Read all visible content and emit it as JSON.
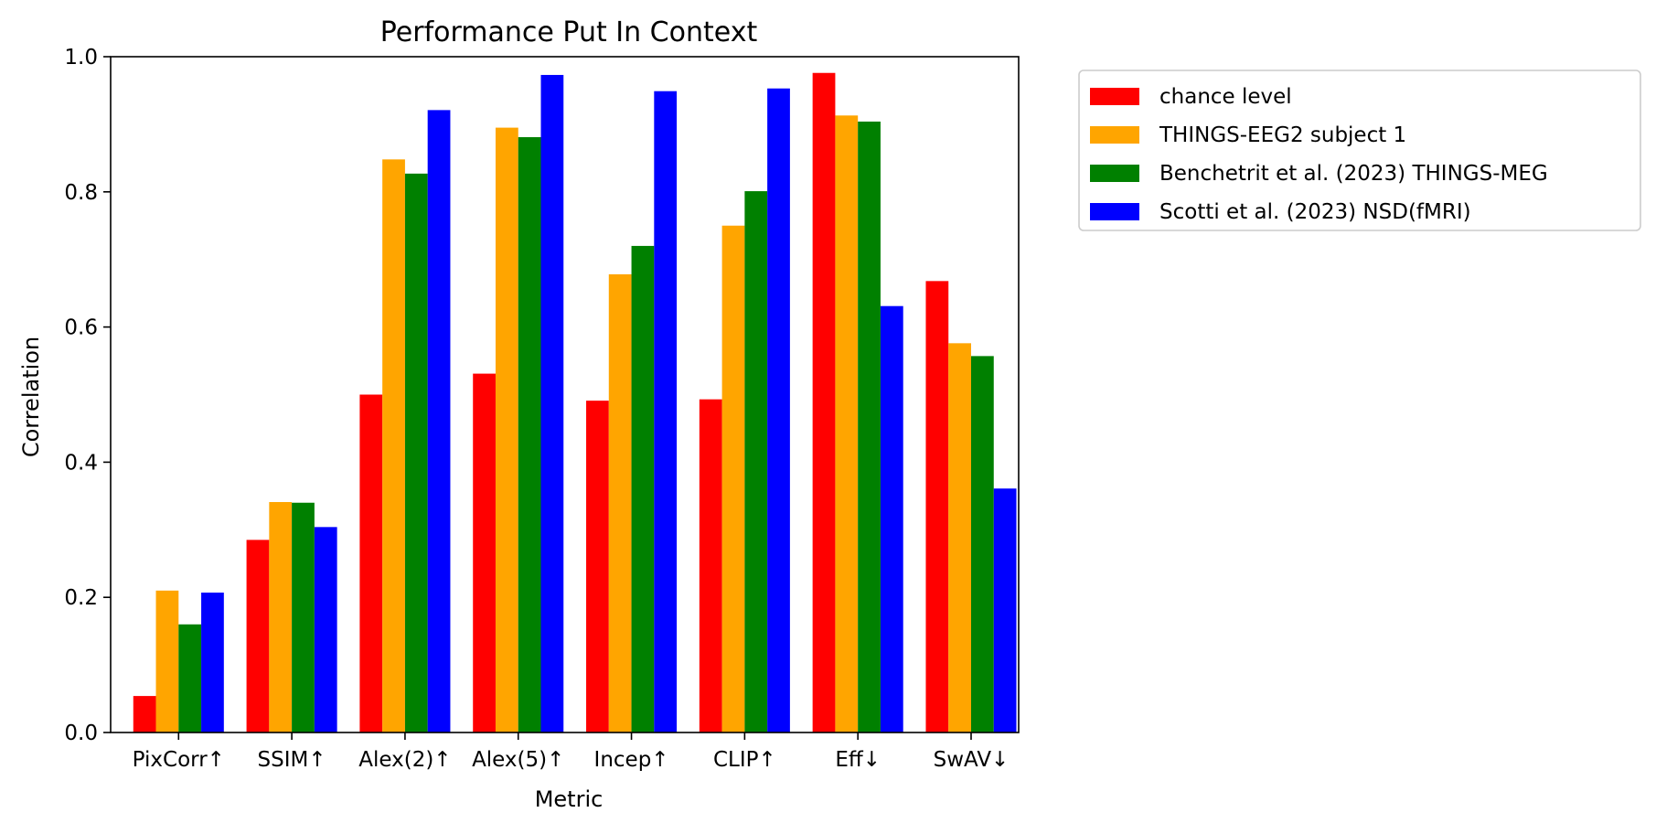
{
  "chart_data": {
    "type": "bar",
    "title": "Performance Put In Context",
    "xlabel": "Metric",
    "ylabel": "Correlation",
    "ylim": [
      0,
      1.0
    ],
    "yticks": [
      0.0,
      0.2,
      0.4,
      0.6,
      0.8,
      1.0
    ],
    "ytick_labels": [
      "0.0",
      "0.2",
      "0.4",
      "0.6",
      "0.8",
      "1.0"
    ],
    "categories": [
      "PixCorr↑",
      "SSIM↑",
      "Alex(2)↑",
      "Alex(5)↑",
      "Incep↑",
      "CLIP↑",
      "Eff↓",
      "SwAV↓"
    ],
    "grid": false,
    "legend_position": "outside top-right",
    "series": [
      {
        "name": "chance level",
        "color": "#ff0000",
        "values": [
          0.054,
          0.285,
          0.5,
          0.531,
          0.491,
          0.493,
          0.976,
          0.668
        ]
      },
      {
        "name": "THINGS-EEG2 subject 1",
        "color": "#ffa500",
        "values": [
          0.21,
          0.341,
          0.848,
          0.895,
          0.678,
          0.75,
          0.913,
          0.576
        ]
      },
      {
        "name": "Benchetrit et al. (2023) THINGS-MEG",
        "color": "#008000",
        "values": [
          0.16,
          0.34,
          0.827,
          0.881,
          0.72,
          0.801,
          0.904,
          0.557
        ]
      },
      {
        "name": "Scotti et al. (2023) NSD(fMRI)",
        "color": "#0000ff",
        "values": [
          0.207,
          0.304,
          0.921,
          0.973,
          0.949,
          0.953,
          0.631,
          0.361
        ]
      }
    ]
  }
}
